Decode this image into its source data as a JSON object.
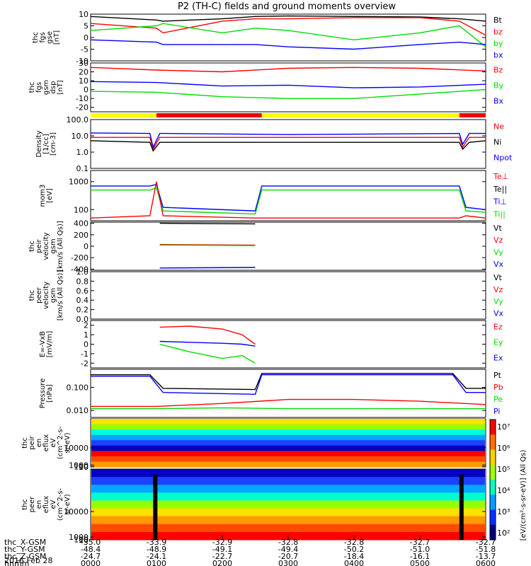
{
  "title": "P2 (TH-C) fields and ground moments overview",
  "date_label": "2016 Feb 28",
  "colors": {
    "black": "#000000",
    "red": "#ff0000",
    "green": "#00dd00",
    "blue": "#0000ff",
    "yellow": "#ffff00",
    "bar_red": "#ee0000"
  },
  "chart_data": [
    {
      "type": "line",
      "ylabel": [
        "thc",
        "fgs",
        "gse",
        "[nT]"
      ],
      "ylim": [
        -10,
        10
      ],
      "ticks": [
        "10",
        "5",
        "0",
        "-5",
        "-10"
      ],
      "tick_values": [
        10,
        5,
        0,
        -5,
        -10
      ],
      "legend": [
        {
          "label": "Bt",
          "color": "#000000"
        },
        {
          "label": "bz",
          "color": "#ff0000"
        },
        {
          "label": "by",
          "color": "#00dd00"
        },
        {
          "label": "bx",
          "color": "#0000ff"
        }
      ],
      "series": [
        {
          "name": "Bt",
          "color": "#000000",
          "x": [
            0,
            1.0,
            1.1,
            2.0,
            2.5,
            3.0,
            4.0,
            5.0,
            5.6,
            6.0
          ],
          "y": [
            9,
            7.5,
            7,
            8,
            9,
            9.2,
            9,
            8.8,
            8,
            7
          ]
        },
        {
          "name": "bz",
          "color": "#ff0000",
          "x": [
            0,
            1.0,
            1.1,
            2.0,
            2.5,
            3.0,
            4.0,
            5.0,
            5.6,
            6.0
          ],
          "y": [
            6,
            4,
            2,
            7,
            8,
            8,
            8.5,
            8.5,
            7,
            1
          ]
        },
        {
          "name": "by",
          "color": "#00dd00",
          "x": [
            0,
            1.0,
            1.1,
            2.0,
            2.5,
            3.0,
            4.0,
            5.0,
            5.6,
            6.0
          ],
          "y": [
            3,
            5,
            6,
            2,
            4,
            3,
            -1,
            2,
            5,
            -4
          ]
        },
        {
          "name": "bx",
          "color": "#0000ff",
          "x": [
            0,
            1.0,
            1.1,
            2.0,
            2.5,
            3.0,
            4.0,
            5.0,
            5.6,
            6.0
          ],
          "y": [
            -1,
            -2,
            -3,
            -3,
            -3,
            -4,
            -5,
            -3,
            -2,
            -3
          ]
        }
      ]
    },
    {
      "type": "line",
      "ylabel": [
        "thc",
        "fgs",
        "gsm",
        "dsp",
        "[nT]"
      ],
      "ylim": [
        -25,
        30
      ],
      "ticks": [
        "30",
        "20",
        "10",
        "0",
        "-10",
        "-20"
      ],
      "tick_values": [
        30,
        20,
        10,
        0,
        -10,
        -20
      ],
      "legend": [
        {
          "label": "Bz",
          "color": "#ff0000"
        },
        {
          "label": "By",
          "color": "#00dd00"
        },
        {
          "label": "Bx",
          "color": "#0000ff"
        }
      ],
      "series": [
        {
          "name": "Bz",
          "color": "#ff0000",
          "x": [
            0,
            1.0,
            2.0,
            3.0,
            4.0,
            5.0,
            6.0
          ],
          "y": [
            25,
            22,
            20,
            24,
            25,
            24,
            21
          ]
        },
        {
          "name": "By",
          "color": "#00dd00",
          "x": [
            0,
            1.0,
            2.0,
            3.0,
            4.0,
            5.0,
            6.0
          ],
          "y": [
            -2,
            -3,
            -8,
            -10,
            -10,
            -5,
            0
          ]
        },
        {
          "name": "Bx",
          "color": "#0000ff",
          "x": [
            0,
            1.0,
            2.0,
            3.0,
            4.0,
            5.0,
            6.0
          ],
          "y": [
            9,
            8,
            4,
            5,
            2,
            3,
            6
          ]
        }
      ]
    },
    {
      "type": "bar",
      "segments": [
        {
          "from": 0,
          "to": 1.0,
          "color": "#ffff00"
        },
        {
          "from": 1.0,
          "to": 2.6,
          "color": "#ee0000"
        },
        {
          "from": 2.6,
          "to": 5.6,
          "color": "#ffff00"
        },
        {
          "from": 5.6,
          "to": 6.0,
          "color": "#ee0000"
        }
      ]
    },
    {
      "type": "line",
      "log": true,
      "ylabel": [
        "Density",
        "[1/cc]",
        "[cm-3]"
      ],
      "ylim": [
        0.1,
        100
      ],
      "ticks": [
        "100.0",
        "10.0",
        "1.0",
        "0.1"
      ],
      "tick_values": [
        100,
        10,
        1,
        0.1
      ],
      "legend": [
        {
          "label": "Ne",
          "color": "#ff0000"
        },
        {
          "label": "Ni",
          "color": "#000000"
        },
        {
          "label": "Npot",
          "color": "#0000ff"
        }
      ],
      "series": [
        {
          "name": "Ne",
          "color": "#ff0000",
          "x": [
            0,
            0.9,
            0.95,
            1.05,
            1.1,
            3.0,
            5.6,
            5.65,
            5.75,
            6.0
          ],
          "y": [
            8,
            8,
            1.5,
            8,
            8,
            8,
            8,
            2.0,
            8,
            8
          ]
        },
        {
          "name": "Ni",
          "color": "#000000",
          "x": [
            0,
            0.9,
            0.95,
            1.05,
            1.1,
            3.0,
            5.6,
            5.65,
            5.75,
            6.0
          ],
          "y": [
            5,
            4,
            1.2,
            4,
            4,
            4,
            4,
            1.5,
            4,
            5
          ]
        },
        {
          "name": "Npot",
          "color": "#0000ff",
          "x": [
            0,
            0.9,
            0.95,
            1.05,
            1.1,
            3.0,
            5.6,
            5.65,
            5.75,
            6.0
          ],
          "y": [
            15,
            14,
            2,
            14,
            14,
            12,
            14,
            3,
            14,
            14
          ]
        }
      ]
    },
    {
      "type": "line",
      "log": true,
      "ylabel": [
        "mom3",
        "[eV]"
      ],
      "ylim": [
        40,
        2500
      ],
      "ticks": [
        "1000",
        "100"
      ],
      "tick_values": [
        1000,
        100
      ],
      "legend": [
        {
          "label": "Te⊥",
          "color": "#ff0000"
        },
        {
          "label": "Te||",
          "color": "#000000"
        },
        {
          "label": "Ti⊥",
          "color": "#0000ff"
        },
        {
          "label": "Ti||",
          "color": "#00dd00"
        }
      ],
      "series": [
        {
          "name": "Ti⊥",
          "color": "#0000ff",
          "x": [
            0,
            0.9,
            1.0,
            1.1,
            2.5,
            2.6,
            5.6,
            5.7,
            6.0
          ],
          "y": [
            700,
            700,
            800,
            120,
            90,
            700,
            700,
            120,
            100
          ]
        },
        {
          "name": "Ti||",
          "color": "#00dd00",
          "x": [
            0,
            0.9,
            1.0,
            1.1,
            2.5,
            2.6,
            5.6,
            5.7,
            6.0
          ],
          "y": [
            500,
            500,
            600,
            90,
            70,
            500,
            500,
            90,
            80
          ]
        },
        {
          "name": "Te⊥",
          "color": "#ff0000",
          "x": [
            0,
            0.9,
            1.0,
            1.1,
            2.5,
            2.6,
            5.6,
            5.7,
            6.0
          ],
          "y": [
            50,
            60,
            1000,
            60,
            50,
            50,
            50,
            60,
            50
          ]
        }
      ]
    },
    {
      "type": "line",
      "ylabel": [
        "thc",
        "peir",
        "velocity",
        "gsm",
        "[km/s (All Qs)]"
      ],
      "ylim": [
        -420,
        420
      ],
      "ticks": [
        "400",
        "200",
        "0",
        "-200",
        "-400"
      ],
      "tick_values": [
        400,
        200,
        0,
        -200,
        -400
      ],
      "legend": [
        {
          "label": "Vt",
          "color": "#000000"
        },
        {
          "label": "Vz",
          "color": "#ff0000"
        },
        {
          "label": "Vy",
          "color": "#00dd00"
        },
        {
          "label": "Vx",
          "color": "#0000ff"
        }
      ],
      "series": [
        {
          "name": "Vt",
          "color": "#000000",
          "x": [
            1.05,
            2.5
          ],
          "y": [
            400,
            390
          ]
        },
        {
          "name": "Vz",
          "color": "#ff0000",
          "x": [
            1.05,
            2.5
          ],
          "y": [
            30,
            20
          ]
        },
        {
          "name": "Vy",
          "color": "#00dd00",
          "x": [
            1.05,
            2.5
          ],
          "y": [
            20,
            10
          ]
        },
        {
          "name": "Vx",
          "color": "#0000ff",
          "x": [
            1.05,
            2.5
          ],
          "y": [
            -380,
            -370
          ]
        }
      ]
    },
    {
      "type": "line",
      "ylabel": [
        "thc",
        "peer",
        "velocity",
        "gsm",
        "[km/s (All Qs)]"
      ],
      "ylim": [
        0,
        1
      ],
      "ticks": [
        "1.0",
        "0.8",
        "0.6",
        "0.4",
        "0.2",
        "0.0"
      ],
      "tick_values": [
        1,
        0.8,
        0.6,
        0.4,
        0.2,
        0
      ],
      "legend": [
        {
          "label": "Vt",
          "color": "#000000"
        },
        {
          "label": "Vz",
          "color": "#ff0000"
        },
        {
          "label": "Vy",
          "color": "#00dd00"
        },
        {
          "label": "Vx",
          "color": "#0000ff"
        }
      ],
      "series": []
    },
    {
      "type": "line",
      "ylabel": [
        "E=-VxB",
        "[mV/m]"
      ],
      "ylim": [
        -2.5,
        2.5
      ],
      "ticks": [
        "2",
        "1",
        "0",
        "-1",
        "-2"
      ],
      "tick_values": [
        2,
        1,
        0,
        -1,
        -2
      ],
      "legend": [
        {
          "label": "Ez",
          "color": "#ff0000"
        },
        {
          "label": "Ey",
          "color": "#00dd00"
        },
        {
          "label": "Ex",
          "color": "#0000ff"
        }
      ],
      "series": [
        {
          "name": "Ez",
          "color": "#ff0000",
          "x": [
            1.05,
            1.5,
            2.0,
            2.3,
            2.5
          ],
          "y": [
            1.8,
            1.9,
            1.6,
            1.0,
            0.0
          ]
        },
        {
          "name": "Ey",
          "color": "#00dd00",
          "x": [
            1.05,
            1.5,
            2.0,
            2.3,
            2.5
          ],
          "y": [
            0.0,
            -0.8,
            -1.5,
            -1.2,
            -2.0
          ]
        },
        {
          "name": "Ex",
          "color": "#0000ff",
          "x": [
            1.05,
            1.5,
            2.0,
            2.3,
            2.5
          ],
          "y": [
            0.3,
            0.2,
            0.1,
            0.0,
            -0.2
          ]
        }
      ]
    },
    {
      "type": "line",
      "log": true,
      "ylabel": [
        "Pressure",
        "[nPa]"
      ],
      "ylim": [
        0.005,
        0.6
      ],
      "ticks": [
        "0.100",
        "0.010"
      ],
      "tick_values": [
        0.1,
        0.01
      ],
      "legend": [
        {
          "label": "Pt",
          "color": "#000000"
        },
        {
          "label": "Pb",
          "color": "#ff0000"
        },
        {
          "label": "Pe",
          "color": "#00dd00"
        },
        {
          "label": "Pi",
          "color": "#0000ff"
        }
      ],
      "series": [
        {
          "name": "Pt",
          "color": "#000000",
          "x": [
            0,
            0.9,
            1.1,
            2.5,
            2.6,
            5.5,
            5.7,
            6.0
          ],
          "y": [
            0.35,
            0.35,
            0.09,
            0.08,
            0.4,
            0.4,
            0.09,
            0.09
          ]
        },
        {
          "name": "Pb",
          "color": "#ff0000",
          "x": [
            0,
            1.0,
            2.0,
            3.0,
            4.0,
            5.0,
            6.0
          ],
          "y": [
            0.015,
            0.015,
            0.02,
            0.03,
            0.03,
            0.025,
            0.018
          ]
        },
        {
          "name": "Pe",
          "color": "#00dd00",
          "x": [
            0,
            1.0,
            2.0,
            3.0,
            4.0,
            5.0,
            6.0
          ],
          "y": [
            0.012,
            0.012,
            0.013,
            0.012,
            0.012,
            0.012,
            0.012
          ]
        },
        {
          "name": "Pi",
          "color": "#0000ff",
          "x": [
            0,
            0.9,
            1.1,
            2.5,
            2.6,
            5.5,
            5.7,
            6.0
          ],
          "y": [
            0.3,
            0.3,
            0.06,
            0.05,
            0.35,
            0.35,
            0.06,
            0.06
          ]
        }
      ]
    },
    {
      "type": "heatmap",
      "ylabel": [
        "thc",
        "peir",
        "en",
        "eflux",
        "eV",
        "(cm^2-s-",
        "sr-eV)"
      ],
      "ticks": [
        "10000",
        "1000",
        "100",
        "10"
      ],
      "tick_values": [
        10000,
        1000,
        100,
        10
      ],
      "ylim": [
        5,
        25000
      ]
    },
    {
      "type": "heatmap",
      "ylabel": [
        "thc",
        "peer",
        "en",
        "eflux",
        "eV",
        "(cm^2-s-",
        "sr-eV)"
      ],
      "ticks": [
        "10000",
        "1000",
        "100",
        "10"
      ],
      "tick_values": [
        10000,
        1000,
        100,
        10
      ],
      "ylim": [
        5,
        25000
      ]
    }
  ],
  "colorbar": {
    "ticks": [
      "10⁷",
      "10⁶",
      "10⁵",
      "10⁴",
      "10³",
      "10²"
    ],
    "label": "[eV/(cm²-s-sr-eV)] (All Qs)"
  },
  "footer": {
    "row_labels": [
      "thc_X-GSM",
      "thc_Y-GSM",
      "thc_Z-GSM",
      "hhmm"
    ],
    "columns": [
      [
        "-35.0",
        "-48.4",
        "-24.7",
        "0000"
      ],
      [
        "-33.9",
        "-48.9",
        "-24.1",
        "0100"
      ],
      [
        "-32.9",
        "-49.1",
        "-22.7",
        "0200"
      ],
      [
        "-32.8",
        "-49.4",
        "-20.7",
        "0300"
      ],
      [
        "-32.8",
        "-50.2",
        "-18.4",
        "0400"
      ],
      [
        "-32.7",
        "-51.0",
        "-16.1",
        "0500"
      ],
      [
        "-32.7",
        "-51.8",
        "-13.7",
        "0600"
      ]
    ]
  }
}
